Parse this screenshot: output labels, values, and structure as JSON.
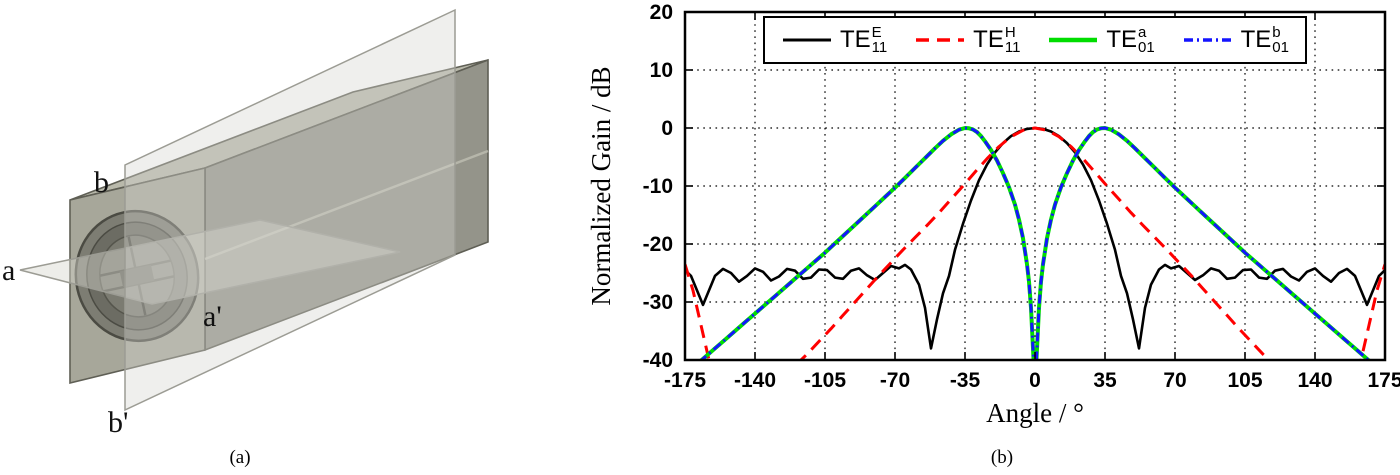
{
  "figure": {
    "captions": {
      "a": "(a)",
      "b": "(b)"
    },
    "panel_a": {
      "labels": {
        "a": "a",
        "a_prime": "a'",
        "b": "b",
        "b_prime": "b'"
      }
    }
  },
  "chart_data": {
    "type": "line",
    "title": "",
    "xlabel": "Angle / °",
    "ylabel": "Normalized Gain / dB",
    "xlim": [
      -175,
      175
    ],
    "ylim": [
      -40,
      20
    ],
    "xticks": [
      -175,
      -140,
      -105,
      -70,
      -35,
      0,
      35,
      70,
      105,
      140,
      175
    ],
    "yticks": [
      -40,
      -30,
      -20,
      -10,
      0,
      10,
      20
    ],
    "grid": true,
    "legend_position": "top-center-inside",
    "series": [
      {
        "name": "TE11-E",
        "label": {
          "base": "TE",
          "sup": "E",
          "sub": "11"
        },
        "color": "#000000",
        "line": "solid",
        "width": 2.6,
        "x": [
          -175,
          -172,
          -169,
          -166,
          -163,
          -160,
          -156,
          -152,
          -148,
          -144,
          -140,
          -136,
          -132,
          -128,
          -124,
          -120,
          -116,
          -112,
          -108,
          -104,
          -100,
          -96,
          -92,
          -88,
          -84,
          -80,
          -76,
          -72,
          -68,
          -65,
          -62,
          -58,
          -55,
          -52,
          -49,
          -46,
          -43,
          -40,
          -36,
          -32,
          -28,
          -24,
          -20,
          -16,
          -12,
          -8,
          -4,
          0,
          4,
          8,
          12,
          16,
          20,
          24,
          28,
          32,
          36,
          40,
          43,
          46,
          49,
          52,
          55,
          58,
          62,
          65,
          68,
          72,
          76,
          80,
          84,
          88,
          92,
          96,
          100,
          104,
          108,
          112,
          116,
          120,
          124,
          128,
          132,
          136,
          140,
          144,
          148,
          152,
          156,
          160,
          163,
          166,
          169,
          172,
          175
        ],
        "y": [
          -24.5,
          -25.5,
          -28,
          -30.5,
          -28,
          -25.5,
          -24.3,
          -25,
          -26.5,
          -25.5,
          -24.2,
          -24.8,
          -26.3,
          -25.6,
          -24.3,
          -24.6,
          -26,
          -25.8,
          -24.4,
          -24.5,
          -25.8,
          -26,
          -24.6,
          -24.2,
          -25.4,
          -26.2,
          -25,
          -23.8,
          -24.2,
          -23.6,
          -24.4,
          -27,
          -31,
          -38,
          -33,
          -28.5,
          -25.5,
          -21,
          -16.5,
          -12.5,
          -9,
          -6.3,
          -4.2,
          -2.6,
          -1.4,
          -0.6,
          -0.15,
          0,
          -0.15,
          -0.6,
          -1.4,
          -2.6,
          -4.2,
          -6.3,
          -9,
          -12.5,
          -16.5,
          -21,
          -25.5,
          -28.5,
          -33,
          -38,
          -31,
          -27,
          -24.4,
          -23.6,
          -24.2,
          -23.8,
          -25,
          -26.2,
          -25.4,
          -24.2,
          -24.6,
          -26,
          -25.8,
          -24.5,
          -24.4,
          -25.8,
          -26,
          -24.6,
          -24.3,
          -25.6,
          -26.3,
          -24.8,
          -24.2,
          -25.5,
          -26.5,
          -25,
          -24.3,
          -25.5,
          -28,
          -30.5,
          -28,
          -25.5,
          -24.5
        ]
      },
      {
        "name": "TE11-H",
        "label": {
          "base": "TE",
          "sup": "H",
          "sub": "11"
        },
        "color": "#ff0000",
        "line": "dashed",
        "width": 3,
        "x": [
          -175,
          -171,
          -167,
          -163,
          -158,
          -150,
          -132,
          -126,
          -120,
          -114,
          -108,
          -102,
          -96,
          -90,
          -84,
          -78,
          -72,
          -66,
          -60,
          -54,
          -48,
          -42,
          -36,
          -30,
          -24,
          -18,
          -12,
          -6,
          0,
          6,
          12,
          18,
          24,
          30,
          36,
          42,
          48,
          54,
          60,
          66,
          72,
          78,
          84,
          90,
          96,
          102,
          108,
          114,
          120,
          126,
          132,
          150,
          158,
          163,
          167,
          171,
          175
        ],
        "y": [
          -23.5,
          -28,
          -34,
          -40,
          -43,
          -45,
          -45,
          -43,
          -41,
          -39,
          -36.8,
          -34.6,
          -32.3,
          -30,
          -27.7,
          -25.4,
          -23.2,
          -21,
          -18.9,
          -16.8,
          -14.6,
          -12.3,
          -10,
          -7.6,
          -5.3,
          -3.2,
          -1.5,
          -0.4,
          0,
          -0.4,
          -1.5,
          -3.2,
          -5.3,
          -7.6,
          -10,
          -12.3,
          -14.6,
          -16.8,
          -18.9,
          -21,
          -23.2,
          -25.4,
          -27.7,
          -30,
          -32.3,
          -34.6,
          -36.8,
          -39,
          -41,
          -43,
          -45,
          -45,
          -43,
          -40,
          -34,
          -28,
          -23.5
        ]
      },
      {
        "name": "TE01-a",
        "label": {
          "base": "TE",
          "sup": "a",
          "sub": "01"
        },
        "color": "#00dd00",
        "line": "solid",
        "width": 4,
        "x": [
          -175,
          -170,
          -165,
          -160,
          -155,
          -150,
          -145,
          -140,
          -135,
          -130,
          -125,
          -120,
          -115,
          -110,
          -105,
          -100,
          -95,
          -90,
          -85,
          -80,
          -75,
          -70,
          -65,
          -60,
          -55,
          -50,
          -46,
          -42,
          -38,
          -35,
          -33,
          -31,
          -29,
          -27,
          -25,
          -22,
          -19,
          -16,
          -13,
          -10,
          -8,
          -6,
          -4,
          -3,
          -2,
          -1,
          0,
          1,
          2,
          3,
          4,
          6,
          8,
          10,
          13,
          16,
          19,
          22,
          25,
          27,
          29,
          31,
          33,
          35,
          38,
          42,
          46,
          50,
          55,
          60,
          65,
          70,
          75,
          80,
          85,
          90,
          95,
          100,
          105,
          110,
          115,
          120,
          125,
          130,
          135,
          140,
          145,
          150,
          155,
          160,
          165,
          170,
          175
        ],
        "y": [
          -42.5,
          -41,
          -39.5,
          -38,
          -36.5,
          -35,
          -33.5,
          -32,
          -30.5,
          -29,
          -27.5,
          -26,
          -24.5,
          -23,
          -21.5,
          -19.9,
          -18.3,
          -16.7,
          -15.1,
          -13.5,
          -11.9,
          -10.3,
          -8.6,
          -6.9,
          -5.2,
          -3.5,
          -2.2,
          -1.1,
          -0.3,
          0,
          -0.05,
          -0.25,
          -0.7,
          -1.4,
          -2.3,
          -3.8,
          -5.6,
          -7.8,
          -10.2,
          -13.2,
          -15.8,
          -19,
          -23.5,
          -26.5,
          -31,
          -38,
          -45,
          -38,
          -31,
          -26.5,
          -23.5,
          -19,
          -15.8,
          -13.2,
          -10.2,
          -7.8,
          -5.6,
          -3.8,
          -2.3,
          -1.4,
          -0.7,
          -0.25,
          -0.05,
          0,
          -0.3,
          -1.1,
          -2.2,
          -3.5,
          -5.2,
          -6.9,
          -8.6,
          -10.3,
          -11.9,
          -13.5,
          -15.1,
          -16.7,
          -18.3,
          -19.9,
          -21.5,
          -23,
          -24.5,
          -26,
          -27.5,
          -29,
          -30.5,
          -32,
          -33.5,
          -35,
          -36.5,
          -38,
          -39.5,
          -41,
          -42.5
        ]
      },
      {
        "name": "TE01-b",
        "label": {
          "base": "TE",
          "sup": "b",
          "sub": "01"
        },
        "color": "#1414ff",
        "line": "dashdot",
        "width": 3,
        "x": [
          -175,
          -170,
          -165,
          -160,
          -155,
          -150,
          -145,
          -140,
          -135,
          -130,
          -125,
          -120,
          -115,
          -110,
          -105,
          -100,
          -95,
          -90,
          -85,
          -80,
          -75,
          -70,
          -65,
          -60,
          -55,
          -50,
          -46,
          -42,
          -38,
          -35,
          -33,
          -31,
          -29,
          -27,
          -25,
          -22,
          -19,
          -16,
          -13,
          -10,
          -8,
          -6,
          -4,
          -3,
          -2,
          -1,
          0,
          1,
          2,
          3,
          4,
          6,
          8,
          10,
          13,
          16,
          19,
          22,
          25,
          27,
          29,
          31,
          33,
          35,
          38,
          42,
          46,
          50,
          55,
          60,
          65,
          70,
          75,
          80,
          85,
          90,
          95,
          100,
          105,
          110,
          115,
          120,
          125,
          130,
          135,
          140,
          145,
          150,
          155,
          160,
          165,
          170,
          175
        ],
        "y": [
          -42.5,
          -41,
          -39.5,
          -38,
          -36.5,
          -35,
          -33.5,
          -32,
          -30.5,
          -29,
          -27.5,
          -26,
          -24.5,
          -23,
          -21.5,
          -19.9,
          -18.3,
          -16.7,
          -15.1,
          -13.5,
          -11.9,
          -10.3,
          -8.6,
          -6.9,
          -5.2,
          -3.5,
          -2.2,
          -1.1,
          -0.3,
          0,
          -0.05,
          -0.25,
          -0.7,
          -1.4,
          -2.3,
          -3.8,
          -5.6,
          -7.8,
          -10.2,
          -13.2,
          -15.8,
          -19,
          -23.5,
          -26.5,
          -31,
          -38,
          -45,
          -38,
          -31,
          -26.5,
          -23.5,
          -19,
          -15.8,
          -13.2,
          -10.2,
          -7.8,
          -5.6,
          -3.8,
          -2.3,
          -1.4,
          -0.7,
          -0.25,
          -0.05,
          0,
          -0.3,
          -1.1,
          -2.2,
          -3.5,
          -5.2,
          -6.9,
          -8.6,
          -10.3,
          -11.9,
          -13.5,
          -15.1,
          -16.7,
          -18.3,
          -19.9,
          -21.5,
          -23,
          -24.5,
          -26,
          -27.5,
          -29,
          -30.5,
          -32,
          -33.5,
          -35,
          -36.5,
          -38,
          -39.5,
          -41,
          -42.5
        ]
      }
    ]
  }
}
